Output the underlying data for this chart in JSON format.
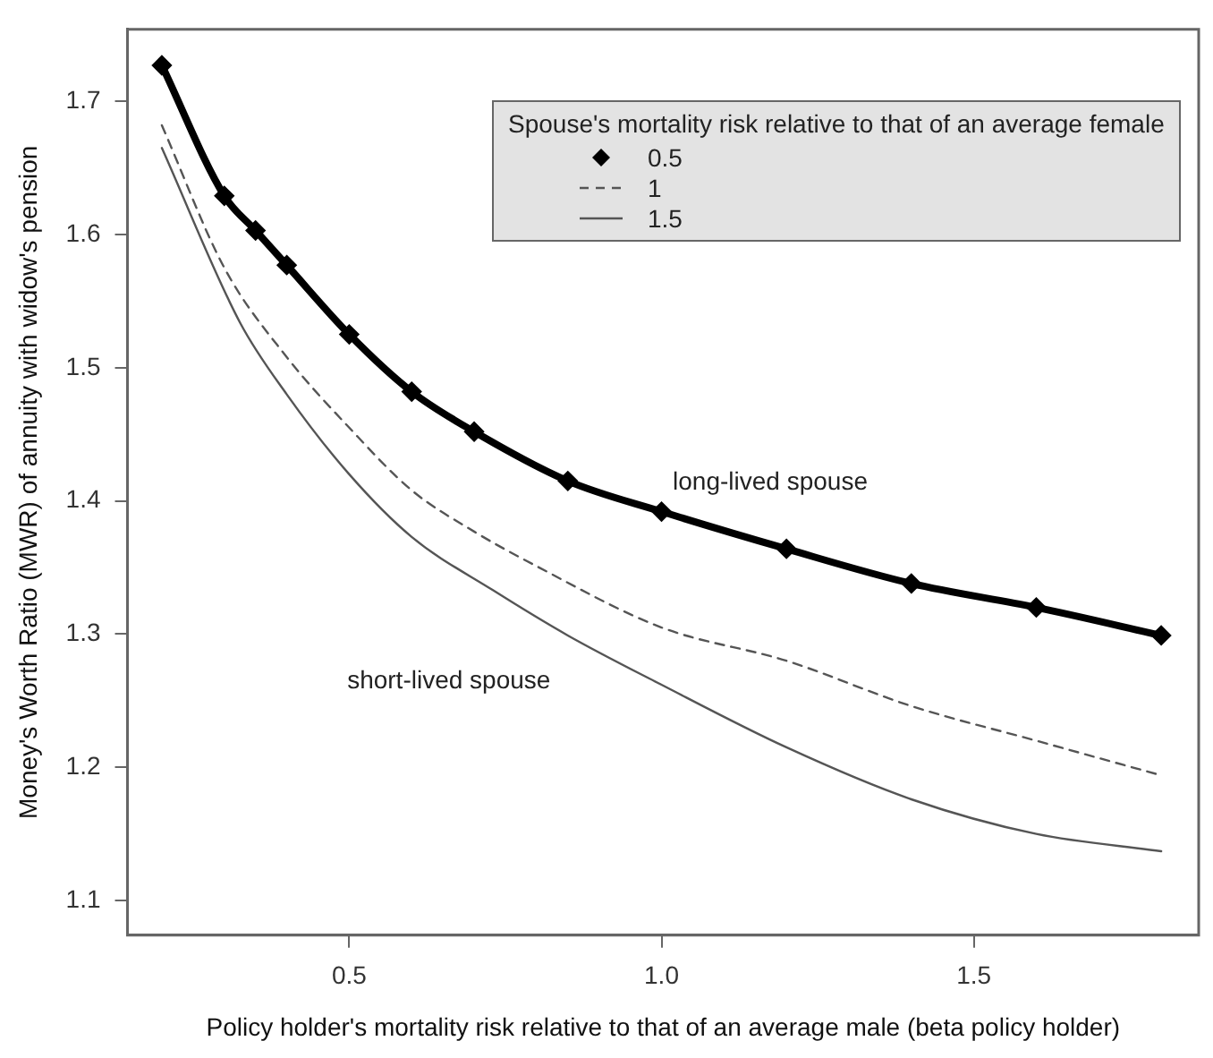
{
  "chart_data": {
    "type": "line",
    "xlabel": "Policy holder's mortality risk relative to that of an average male (beta policy holder)",
    "ylabel": "Money's Worth Ratio (MWR) of annuity with widow's pension",
    "legend_title": "Spouse's mortality risk relative to that of an average female",
    "legend": "top right",
    "grid": false,
    "xlim": [
      0.145,
      1.86
    ],
    "xticks": [
      {
        "value": 0.5,
        "label": "0.5"
      },
      {
        "value": 1,
        "label": "1.0"
      },
      {
        "value": 1.5,
        "label": "1.5"
      }
    ],
    "ylim": [
      1.074,
      1.754
    ],
    "yticks": [
      1.1,
      1.2,
      1.3,
      1.4,
      1.5,
      1.6,
      1.7
    ],
    "series": [
      {
        "name": "0.5",
        "color": "#000000",
        "marker": "diamond",
        "line_style": "solid",
        "x": [
          0.2,
          0.3,
          0.35,
          0.4,
          0.5,
          0.6,
          0.7,
          0.85,
          1.0,
          1.2,
          1.4,
          1.6,
          1.8
        ],
        "values": [
          1.727,
          1.629,
          1.603,
          1.577,
          1.525,
          1.482,
          1.452,
          1.415,
          1.392,
          1.364,
          1.338,
          1.32,
          1.299
        ]
      },
      {
        "name": "1",
        "color": "#555555",
        "marker": "none",
        "line_style": "dashed",
        "x": [
          0.2,
          0.3,
          0.4,
          0.5,
          0.6,
          0.7,
          0.8,
          1.0,
          1.2,
          1.4,
          1.6,
          1.8
        ],
        "values": [
          1.682,
          1.575,
          1.508,
          1.455,
          1.408,
          1.377,
          1.351,
          1.305,
          1.28,
          1.246,
          1.22,
          1.194
        ]
      },
      {
        "name": "1.5",
        "color": "#555555",
        "marker": "none",
        "line_style": "solid",
        "x": [
          0.2,
          0.325,
          0.4,
          0.5,
          0.6,
          0.73,
          0.85,
          1.0,
          1.2,
          1.4,
          1.6,
          1.8
        ],
        "values": [
          1.665,
          1.534,
          1.48,
          1.42,
          1.373,
          1.333,
          1.299,
          1.262,
          1.215,
          1.176,
          1.15,
          1.137
        ]
      }
    ],
    "annotations": [
      "long-lived spouse",
      "short-lived spouse"
    ]
  }
}
